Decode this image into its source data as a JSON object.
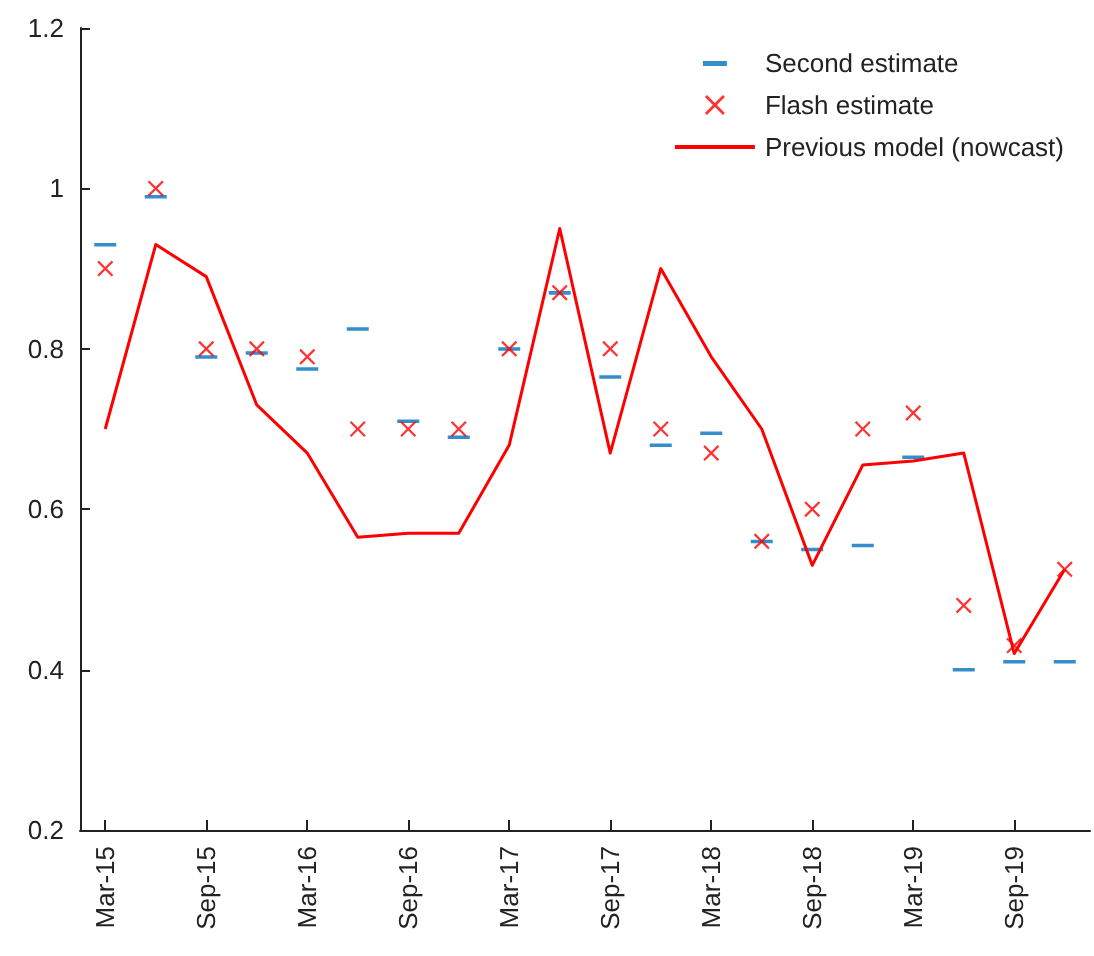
{
  "chart_data": {
    "type": "scatter",
    "categories": [
      "Mar-15",
      null,
      "Sep-15",
      null,
      "Mar-16",
      null,
      "Sep-16",
      null,
      "Mar-17",
      null,
      "Sep-17",
      null,
      "Mar-18",
      null,
      "Sep-18",
      null,
      "Mar-19",
      null,
      "Sep-19",
      null
    ],
    "series": [
      {
        "name": "Second estimate",
        "color": "#0072bd",
        "values": [
          0.93,
          0.99,
          0.79,
          0.795,
          0.775,
          0.825,
          0.71,
          0.69,
          0.8,
          0.87,
          0.765,
          0.68,
          0.695,
          0.56,
          0.55,
          0.555,
          0.665,
          0.4,
          0.41,
          0.41
        ]
      },
      {
        "name": "Flash estimate",
        "marker": "cross",
        "color": "#ff0000",
        "values": [
          0.9,
          1.0,
          0.8,
          0.8,
          0.79,
          0.7,
          0.7,
          0.7,
          0.8,
          0.87,
          0.8,
          0.7,
          0.67,
          0.56,
          0.6,
          0.7,
          0.72,
          0.48,
          0.43,
          0.525
        ]
      },
      {
        "name": "Previous model (nowcast)",
        "type": "line",
        "marker": "none",
        "color": "#ff0000",
        "values": [
          0.7,
          0.93,
          0.89,
          0.73,
          0.67,
          0.565,
          0.57,
          0.57,
          0.68,
          0.95,
          0.67,
          0.9,
          0.79,
          0.7,
          0.53,
          0.655,
          0.66,
          0.67,
          0.42,
          0.525
        ]
      }
    ],
    "ylim": [
      0.2,
      1.2
    ],
    "yticks": [
      0.2,
      0.4,
      0.6,
      0.8,
      1,
      1.2
    ],
    "grid": false,
    "legend": "top right"
  }
}
